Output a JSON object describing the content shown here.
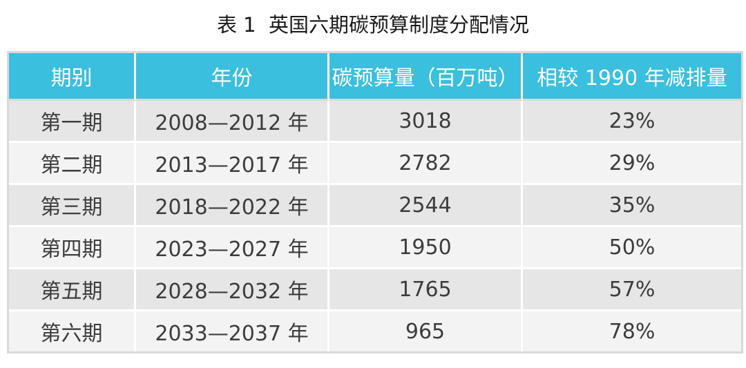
{
  "caption": "表 1  英国六期碳预算制度分配情况",
  "table": {
    "headers": [
      "期别",
      "年份",
      "碳预算量（百万吨）",
      "相较 1990 年减排量"
    ],
    "rows": [
      [
        "第一期",
        "2008—2012 年",
        "3018",
        "23%"
      ],
      [
        "第二期",
        "2013—2017 年",
        "2782",
        "29%"
      ],
      [
        "第三期",
        "2018—2022 年",
        "2544",
        "35%"
      ],
      [
        "第四期",
        "2023—2027 年",
        "1950",
        "50%"
      ],
      [
        "第五期",
        "2028—2032 年",
        "1765",
        "57%"
      ],
      [
        "第六期",
        "2033—2037 年",
        "965",
        "78%"
      ]
    ]
  },
  "colors": {
    "header_bg": "#3bbfdf",
    "row_odd_bg": "#e6e6e6",
    "row_even_bg": "#f3f3f3"
  }
}
